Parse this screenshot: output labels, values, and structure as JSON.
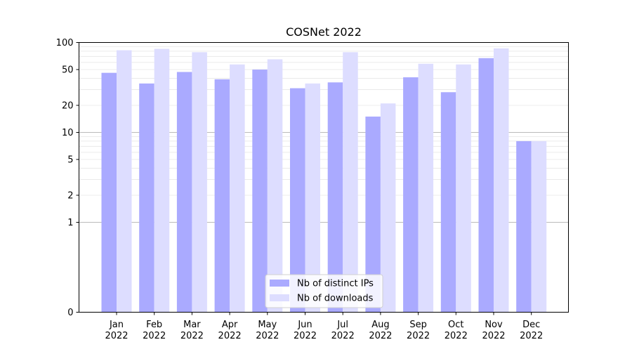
{
  "chart_data": {
    "type": "bar",
    "title": "COSNet 2022",
    "xlabel": "",
    "ylabel": "",
    "yscale": "symlog",
    "ylim": [
      0,
      100
    ],
    "y_ticks": [
      0,
      1,
      2,
      5,
      10,
      20,
      50,
      100
    ],
    "y_tick_labels": [
      "0",
      "1",
      "2",
      "5",
      "10",
      "20",
      "50",
      "100"
    ],
    "grid": "horizontal, minor light grey, major at 1 and 10 darker",
    "legend_position": "bottom-center",
    "categories": [
      "Jan\n2022",
      "Feb\n2022",
      "Mar\n2022",
      "Apr\n2022",
      "May\n2022",
      "Jun\n2022",
      "Jul\n2022",
      "Aug\n2022",
      "Sep\n2022",
      "Oct\n2022",
      "Nov\n2022",
      "Dec\n2022"
    ],
    "category_lines": [
      [
        "Jan",
        "2022"
      ],
      [
        "Feb",
        "2022"
      ],
      [
        "Mar",
        "2022"
      ],
      [
        "Apr",
        "2022"
      ],
      [
        "May",
        "2022"
      ],
      [
        "Jun",
        "2022"
      ],
      [
        "Jul",
        "2022"
      ],
      [
        "Aug",
        "2022"
      ],
      [
        "Sep",
        "2022"
      ],
      [
        "Oct",
        "2022"
      ],
      [
        "Nov",
        "2022"
      ],
      [
        "Dec",
        "2022"
      ]
    ],
    "series": [
      {
        "name": "Nb of distinct IPs",
        "color": "#aaaaff",
        "values": [
          46,
          35,
          47,
          39,
          50,
          31,
          36,
          15,
          41,
          28,
          67,
          8
        ]
      },
      {
        "name": "Nb of downloads",
        "color": "#ddddff",
        "values": [
          82,
          85,
          78,
          57,
          65,
          35,
          78,
          21,
          58,
          57,
          86,
          8
        ]
      }
    ]
  }
}
